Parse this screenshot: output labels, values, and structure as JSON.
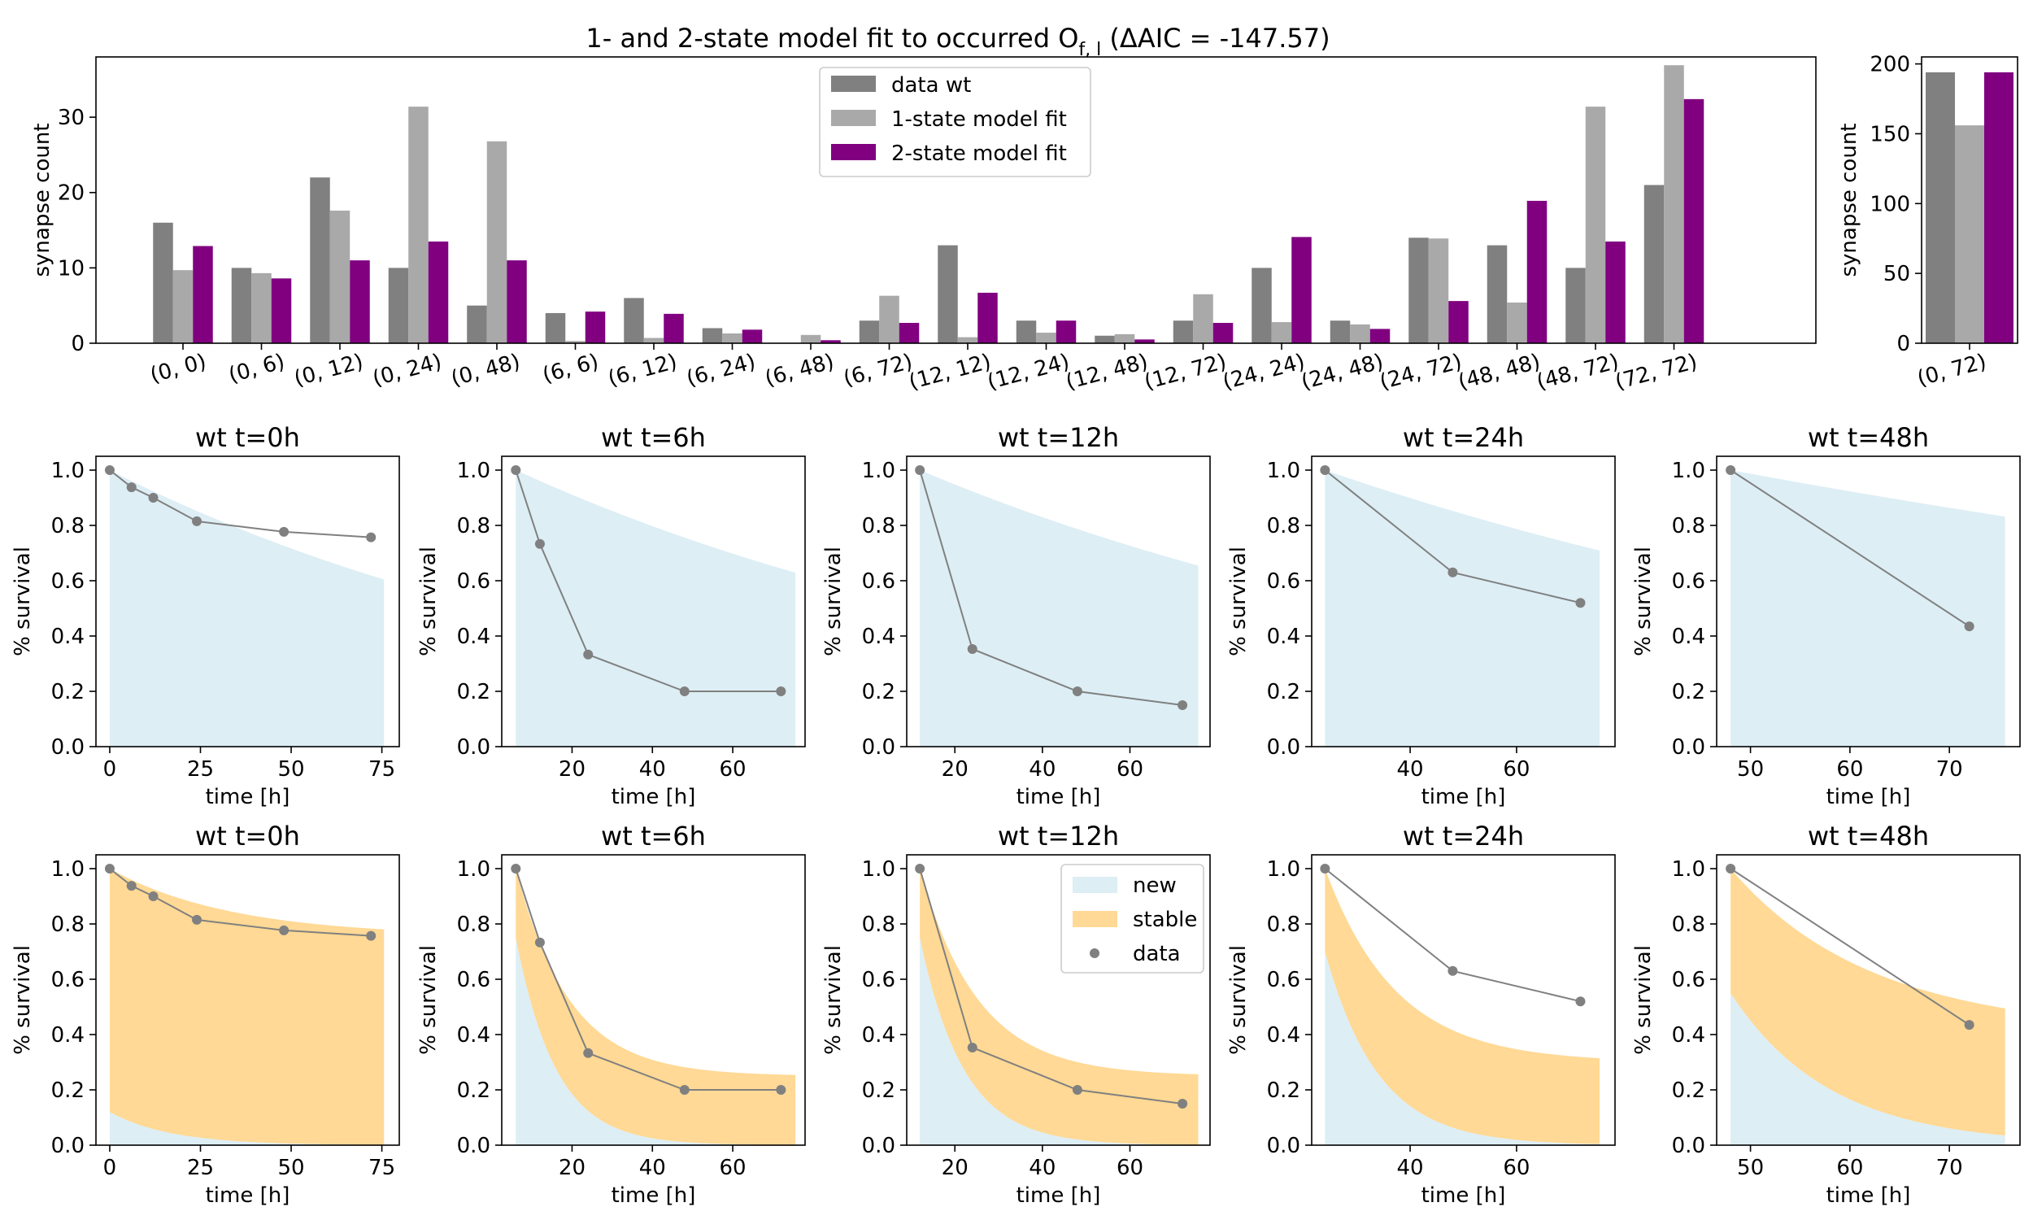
{
  "figure": {
    "title": "1- and 2-state model fit to occurred O",
    "title_subscript": "f, l",
    "title_suffix": " (ΔAIC = -147.57)"
  },
  "colors": {
    "data": "#808080",
    "one_state": "#a9a9a9",
    "two_state": "#800080",
    "new_fill": "#ddeef5",
    "stable_fill": "#ffd995",
    "data_line": "#808080"
  },
  "chart_data": [
    {
      "id": "counts",
      "type": "bar",
      "ylabel": "synapse count",
      "ylim": [
        0,
        38
      ],
      "yticks": [
        0,
        10,
        20,
        30
      ],
      "categories": [
        "(0, 0)",
        "(0, 6)",
        "(0, 12)",
        "(0, 24)",
        "(0, 48)",
        "(6, 6)",
        "(6, 12)",
        "(6, 24)",
        "(6, 48)",
        "(6, 72)",
        "(12, 12)",
        "(12, 24)",
        "(12, 48)",
        "(12, 72)",
        "(24, 24)",
        "(24, 48)",
        "(24, 72)",
        "(48, 48)",
        "(48, 72)",
        "(72, 72)"
      ],
      "legend_position": "upper center",
      "series": [
        {
          "name": "data wt",
          "values": [
            16,
            10,
            22,
            10,
            5,
            4,
            6,
            2,
            0,
            3,
            13,
            3,
            1,
            3,
            10,
            3,
            14,
            13,
            10,
            21
          ]
        },
        {
          "name": "1-state model fit",
          "values": [
            9.7,
            9.3,
            17.6,
            31.4,
            26.8,
            0.3,
            0.7,
            1.3,
            1.1,
            6.3,
            0.8,
            1.4,
            1.2,
            6.5,
            2.8,
            2.5,
            13.9,
            5.4,
            31.4,
            36.9
          ]
        },
        {
          "name": "2-state model fit",
          "values": [
            12.9,
            8.6,
            11.0,
            13.5,
            11.0,
            4.2,
            3.9,
            1.8,
            0.4,
            2.7,
            6.7,
            3.0,
            0.5,
            2.7,
            14.1,
            1.9,
            5.6,
            18.9,
            13.5,
            32.4
          ]
        }
      ]
    },
    {
      "id": "counts_side",
      "type": "bar",
      "ylabel": "synapse count",
      "ylim": [
        0,
        205
      ],
      "yticks": [
        0,
        50,
        100,
        150,
        200
      ],
      "categories": [
        "(0, 72)"
      ],
      "series": [
        {
          "name": "data wt",
          "values": [
            194
          ]
        },
        {
          "name": "1-state model fit",
          "values": [
            156
          ]
        },
        {
          "name": "2-state model fit",
          "values": [
            194
          ]
        }
      ]
    },
    {
      "id": "one_state",
      "type": "area",
      "ylabel": "% survival",
      "xlabel": "time [h]",
      "ylim": [
        0.0,
        1.05
      ],
      "yticks": [
        0.0,
        0.2,
        0.4,
        0.6,
        0.8,
        1.0
      ],
      "panels": [
        {
          "title": "wt t=0h",
          "t0": 0,
          "xlim": [
            -3.8,
            79.8
          ],
          "xticks": [
            0,
            25,
            50,
            75
          ],
          "rate": 0.00666,
          "data": {
            "x": [
              0,
              6,
              12,
              24,
              48,
              72
            ],
            "y": [
              1.0,
              0.938,
              0.9,
              0.815,
              0.777,
              0.757
            ]
          }
        },
        {
          "title": "wt t=6h",
          "t0": 6,
          "xlim": [
            2.5,
            78.0
          ],
          "xticks": [
            20,
            40,
            60
          ],
          "rate": 0.00666,
          "data": {
            "x": [
              6,
              12,
              24,
              48,
              72
            ],
            "y": [
              1.0,
              0.733,
              0.333,
              0.2,
              0.2
            ]
          }
        },
        {
          "title": "wt t=12h",
          "t0": 12,
          "xlim": [
            9.0,
            78.3
          ],
          "xticks": [
            20,
            40,
            60
          ],
          "rate": 0.00666,
          "data": {
            "x": [
              12,
              24,
              48,
              72
            ],
            "y": [
              1.0,
              0.353,
              0.2,
              0.15
            ]
          }
        },
        {
          "title": "wt t=24h",
          "t0": 24,
          "xlim": [
            21.5,
            78.5
          ],
          "xticks": [
            40,
            60
          ],
          "rate": 0.00666,
          "data": {
            "x": [
              24,
              48,
              72
            ],
            "y": [
              1.0,
              0.63,
              0.52
            ]
          }
        },
        {
          "title": "wt t=48h",
          "t0": 48,
          "xlim": [
            46.6,
            77.1
          ],
          "xticks": [
            50,
            60,
            70
          ],
          "rate": 0.00666,
          "data": {
            "x": [
              48,
              72
            ],
            "y": [
              1.0,
              0.435
            ]
          }
        }
      ]
    },
    {
      "id": "two_state",
      "type": "area",
      "ylabel": "% survival",
      "xlabel": "time [h]",
      "ylim": [
        0.0,
        1.05
      ],
      "yticks": [
        0.0,
        0.2,
        0.4,
        0.6,
        0.8,
        1.0
      ],
      "legend": [
        "new",
        "stable",
        "data"
      ],
      "legend_panel": 2,
      "panels": [
        {
          "title": "wt t=0h",
          "t0": 0,
          "xlim": [
            -3.8,
            79.8
          ],
          "xticks": [
            0,
            25,
            50,
            75
          ],
          "stable_fraction": 0.888,
          "fast_rate": 0.1,
          "plateau": 0.14,
          "data": {
            "x": [
              0,
              6,
              12,
              24,
              48,
              72
            ],
            "y": [
              1.0,
              0.938,
              0.9,
              0.815,
              0.777,
              0.757
            ]
          }
        },
        {
          "title": "wt t=6h",
          "t0": 6,
          "xlim": [
            2.5,
            78.0
          ],
          "xticks": [
            20,
            40,
            60
          ],
          "stable_fraction": 0.25,
          "fast_rate": 0.1,
          "plateau": 0.14,
          "data": {
            "x": [
              6,
              12,
              24,
              48,
              72
            ],
            "y": [
              1.0,
              0.733,
              0.333,
              0.2,
              0.2
            ]
          }
        },
        {
          "title": "wt t=12h",
          "t0": 12,
          "xlim": [
            9.0,
            78.3
          ],
          "xticks": [
            20,
            40,
            60
          ],
          "stable_fraction": 0.25,
          "fast_rate": 0.1,
          "plateau": 0.14,
          "data": {
            "x": [
              12,
              24,
              48,
              72
            ],
            "y": [
              1.0,
              0.353,
              0.2,
              0.15
            ]
          }
        },
        {
          "title": "wt t=24h",
          "t0": 24,
          "xlim": [
            21.5,
            78.5
          ],
          "xticks": [
            40,
            60
          ],
          "stable_fraction": 0.3,
          "fast_rate": 0.1,
          "plateau": 0.14,
          "data": {
            "x": [
              24,
              48,
              72
            ],
            "y": [
              1.0,
              0.63,
              0.52
            ]
          }
        },
        {
          "title": "wt t=48h",
          "t0": 48,
          "xlim": [
            46.6,
            77.1
          ],
          "xticks": [
            50,
            60,
            70
          ],
          "stable_fraction": 0.45,
          "fast_rate": 0.1,
          "plateau": 0.14,
          "data": {
            "x": [
              48,
              72
            ],
            "y": [
              1.0,
              0.435
            ]
          }
        }
      ]
    }
  ]
}
